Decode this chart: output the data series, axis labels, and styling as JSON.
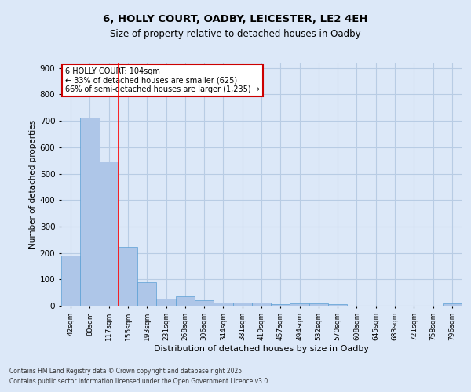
{
  "title_line1": "6, HOLLY COURT, OADBY, LEICESTER, LE2 4EH",
  "title_line2": "Size of property relative to detached houses in Oadby",
  "xlabel": "Distribution of detached houses by size in Oadby",
  "ylabel": "Number of detached properties",
  "categories": [
    "42sqm",
    "80sqm",
    "117sqm",
    "155sqm",
    "193sqm",
    "231sqm",
    "268sqm",
    "306sqm",
    "344sqm",
    "381sqm",
    "419sqm",
    "457sqm",
    "494sqm",
    "532sqm",
    "570sqm",
    "608sqm",
    "645sqm",
    "683sqm",
    "721sqm",
    "758sqm",
    "796sqm"
  ],
  "values": [
    190,
    712,
    547,
    224,
    90,
    27,
    36,
    22,
    12,
    12,
    12,
    5,
    9,
    10,
    6,
    0,
    0,
    0,
    0,
    0,
    9
  ],
  "bar_color": "#aec6e8",
  "bar_edge_color": "#5a9fd4",
  "red_line_x": 2.5,
  "annotation_title": "6 HOLLY COURT: 104sqm",
  "annotation_line1": "← 33% of detached houses are smaller (625)",
  "annotation_line2": "66% of semi-detached houses are larger (1,235) →",
  "annotation_box_color": "#ffffff",
  "annotation_box_edgecolor": "#cc0000",
  "ylim": [
    0,
    920
  ],
  "yticks": [
    0,
    100,
    200,
    300,
    400,
    500,
    600,
    700,
    800,
    900
  ],
  "background_color": "#dce8f8",
  "grid_color": "#b8cce4",
  "footer_line1": "Contains HM Land Registry data © Crown copyright and database right 2025.",
  "footer_line2": "Contains public sector information licensed under the Open Government Licence v3.0."
}
